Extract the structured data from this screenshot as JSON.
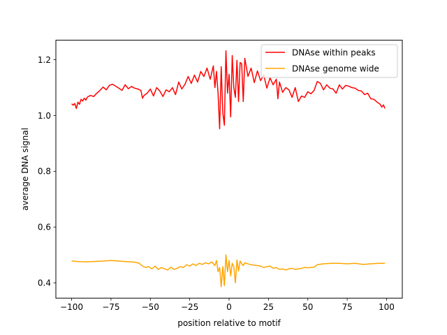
{
  "chart_data": {
    "type": "line",
    "title": "",
    "xlabel": "position relative to motif",
    "ylabel": "average DNA signal",
    "xlim": [
      -110,
      110
    ],
    "ylim": [
      0.345,
      1.27
    ],
    "xticks": [
      -100,
      -75,
      -50,
      -25,
      0,
      25,
      50,
      75,
      100
    ],
    "yticks": [
      0.4,
      0.6,
      0.8,
      1.0,
      1.2
    ],
    "xtick_labels": [
      "−100",
      "−75",
      "−50",
      "−25",
      "0",
      "25",
      "50",
      "75",
      "100"
    ],
    "ytick_labels": [
      "0.4",
      "0.6",
      "0.8",
      "1.0",
      "1.2"
    ],
    "grid": false,
    "legend_position": "top-right",
    "series": [
      {
        "name": "DNAse within peaks",
        "color": "#ff0000",
        "x": [
          -100,
          -99,
          -98,
          -97,
          -96,
          -95,
          -94,
          -93,
          -92,
          -91,
          -90,
          -88,
          -86,
          -84,
          -82,
          -80,
          -78,
          -76,
          -74,
          -72,
          -70,
          -68,
          -66,
          -64,
          -62,
          -60,
          -58,
          -56,
          -55,
          -54,
          -52,
          -50,
          -48,
          -46,
          -44,
          -42,
          -40,
          -38,
          -36,
          -34,
          -32,
          -30,
          -28,
          -26,
          -24,
          -22,
          -20,
          -18,
          -16,
          -14,
          -12,
          -10,
          -9,
          -8,
          -7,
          -6,
          -5,
          -4,
          -3,
          -2,
          -1,
          0,
          1,
          2,
          3,
          4,
          5,
          6,
          7,
          8,
          9,
          10,
          12,
          14,
          16,
          18,
          20,
          22,
          24,
          26,
          28,
          30,
          31,
          32,
          34,
          36,
          38,
          40,
          42,
          44,
          46,
          48,
          50,
          52,
          54,
          56,
          58,
          60,
          62,
          64,
          66,
          68,
          70,
          72,
          74,
          76,
          78,
          80,
          82,
          84,
          86,
          88,
          90,
          92,
          94,
          96,
          97,
          98,
          99
        ],
        "y": [
          1.042,
          1.037,
          1.043,
          1.025,
          1.048,
          1.04,
          1.058,
          1.052,
          1.062,
          1.055,
          1.066,
          1.072,
          1.068,
          1.08,
          1.09,
          1.102,
          1.092,
          1.108,
          1.112,
          1.105,
          1.098,
          1.09,
          1.11,
          1.096,
          1.104,
          1.098,
          1.095,
          1.09,
          1.062,
          1.072,
          1.08,
          1.095,
          1.07,
          1.1,
          1.088,
          1.068,
          1.092,
          1.085,
          1.1,
          1.075,
          1.12,
          1.095,
          1.112,
          1.14,
          1.115,
          1.145,
          1.12,
          1.158,
          1.14,
          1.17,
          1.13,
          1.178,
          1.1,
          1.158,
          1.08,
          0.952,
          1.175,
          1.01,
          0.965,
          1.232,
          1.08,
          1.148,
          0.995,
          1.215,
          1.1,
          1.065,
          1.198,
          1.05,
          1.19,
          1.185,
          1.05,
          1.205,
          1.14,
          1.17,
          1.118,
          1.16,
          1.125,
          1.145,
          1.098,
          1.135,
          1.11,
          1.13,
          1.06,
          1.12,
          1.083,
          1.1,
          1.092,
          1.065,
          1.1,
          1.05,
          1.07,
          1.065,
          1.085,
          1.078,
          1.09,
          1.122,
          1.115,
          1.092,
          1.11,
          1.098,
          1.095,
          1.08,
          1.11,
          1.095,
          1.108,
          1.105,
          1.1,
          1.098,
          1.09,
          1.088,
          1.075,
          1.08,
          1.06,
          1.058,
          1.048,
          1.04,
          1.03,
          1.038,
          1.025
        ]
      },
      {
        "name": "DNAse genome wide",
        "color": "#ffa500",
        "x": [
          -100,
          -95,
          -90,
          -85,
          -80,
          -75,
          -70,
          -65,
          -60,
          -57,
          -55,
          -53,
          -51,
          -49,
          -47,
          -45,
          -43,
          -41,
          -39,
          -37,
          -35,
          -33,
          -31,
          -29,
          -27,
          -25,
          -23,
          -21,
          -19,
          -17,
          -15,
          -13,
          -11,
          -9,
          -8,
          -7,
          -6,
          -5,
          -4,
          -3,
          -2,
          -1,
          0,
          1,
          2,
          3,
          4,
          5,
          6,
          7,
          8,
          9,
          10,
          12,
          14,
          16,
          18,
          20,
          22,
          24,
          26,
          28,
          30,
          32,
          34,
          36,
          38,
          40,
          42,
          44,
          46,
          48,
          50,
          52,
          54,
          56,
          60,
          65,
          70,
          75,
          80,
          85,
          90,
          95,
          99
        ],
        "y": [
          0.478,
          0.476,
          0.475,
          0.477,
          0.478,
          0.48,
          0.478,
          0.476,
          0.474,
          0.47,
          0.46,
          0.455,
          0.458,
          0.45,
          0.46,
          0.448,
          0.455,
          0.45,
          0.446,
          0.456,
          0.448,
          0.452,
          0.458,
          0.455,
          0.465,
          0.46,
          0.468,
          0.462,
          0.47,
          0.466,
          0.472,
          0.468,
          0.475,
          0.462,
          0.48,
          0.44,
          0.455,
          0.386,
          0.458,
          0.39,
          0.5,
          0.44,
          0.48,
          0.425,
          0.47,
          0.458,
          0.4,
          0.482,
          0.442,
          0.478,
          0.468,
          0.462,
          0.472,
          0.468,
          0.465,
          0.463,
          0.462,
          0.46,
          0.455,
          0.458,
          0.46,
          0.452,
          0.455,
          0.448,
          0.45,
          0.446,
          0.45,
          0.452,
          0.448,
          0.45,
          0.452,
          0.455,
          0.454,
          0.455,
          0.456,
          0.465,
          0.468,
          0.47,
          0.47,
          0.468,
          0.47,
          0.466,
          0.468,
          0.47,
          0.47
        ]
      }
    ]
  }
}
